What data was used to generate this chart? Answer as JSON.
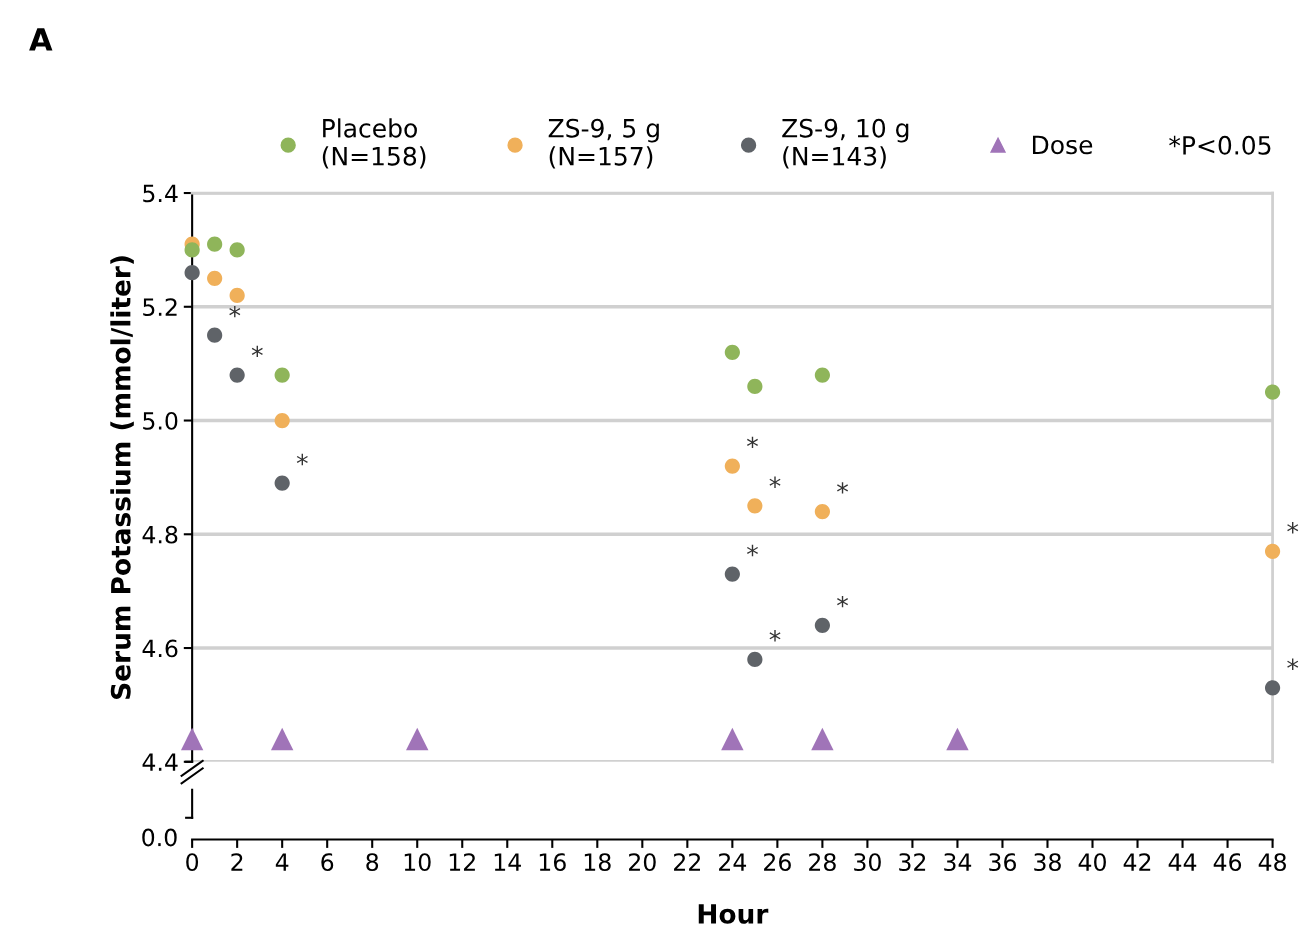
{
  "chart_data": {
    "type": "scatter",
    "title": "A",
    "ylabel": "Serum Potassium (mmol/liter)",
    "xlabel": "Hour",
    "xlim": [
      0,
      48
    ],
    "xticks": [
      0,
      2,
      4,
      6,
      8,
      10,
      12,
      14,
      16,
      18,
      20,
      22,
      24,
      26,
      28,
      30,
      32,
      34,
      36,
      38,
      40,
      42,
      44,
      46,
      48
    ],
    "ylim": [
      4.4,
      5.4
    ],
    "yticks": [
      4.4,
      4.6,
      4.8,
      {
        "value": 5.0,
        "label": "5.0"
      },
      5.2,
      5.4
    ],
    "grid": "y",
    "legend": "top",
    "marker": "circle",
    "series": [
      {
        "name": "Placebo\n(N=158)",
        "color": "#8fb55a",
        "x": [
          0,
          1,
          2,
          4,
          24,
          25,
          28,
          48
        ],
        "values": [
          5.3,
          5.31,
          5.3,
          5.08,
          5.12,
          5.06,
          5.08,
          5.05
        ]
      },
      {
        "name": "ZS-9, 5 g\n(N=157)",
        "color": "#f0b05a",
        "x": [
          0,
          1,
          2,
          4,
          24,
          25,
          28,
          48
        ],
        "values": [
          5.31,
          5.25,
          5.22,
          5.0,
          4.92,
          4.85,
          4.84,
          4.77
        ]
      },
      {
        "name": "ZS-9, 10 g\n(N=143)",
        "color": "#5f6368",
        "x": [
          0,
          1,
          2,
          4,
          24,
          25,
          28,
          48
        ],
        "values": [
          5.26,
          5.15,
          5.08,
          4.89,
          4.73,
          4.58,
          4.64,
          4.53
        ]
      },
      {
        "name": "Dose",
        "color": "#a074b8",
        "marker": "triangle",
        "x": [
          0,
          4,
          10,
          24,
          28,
          34
        ],
        "values": [
          4.44,
          4.44,
          4.44,
          4.44,
          4.44,
          4.44
        ]
      }
    ],
    "annotations": [
      "*P<0.05",
      "0.0",
      {
        "text": "*",
        "x": 1,
        "y": 5.15
      },
      {
        "text": "*",
        "x": 2,
        "y": 5.08
      },
      {
        "text": "*",
        "x": 4,
        "y": 4.89
      },
      {
        "text": "*",
        "x": 24,
        "y": 4.92
      },
      {
        "text": "*",
        "x": 25,
        "y": 4.85
      },
      {
        "text": "*",
        "x": 28,
        "y": 4.84
      },
      {
        "text": "*",
        "x": 48,
        "y": 4.77
      },
      {
        "text": "*",
        "x": 24,
        "y": 4.73
      },
      {
        "text": "*",
        "x": 25,
        "y": 4.58
      },
      {
        "text": "*",
        "x": 28,
        "y": 4.64
      },
      {
        "text": "*",
        "x": 48,
        "y": 4.53
      }
    ]
  }
}
